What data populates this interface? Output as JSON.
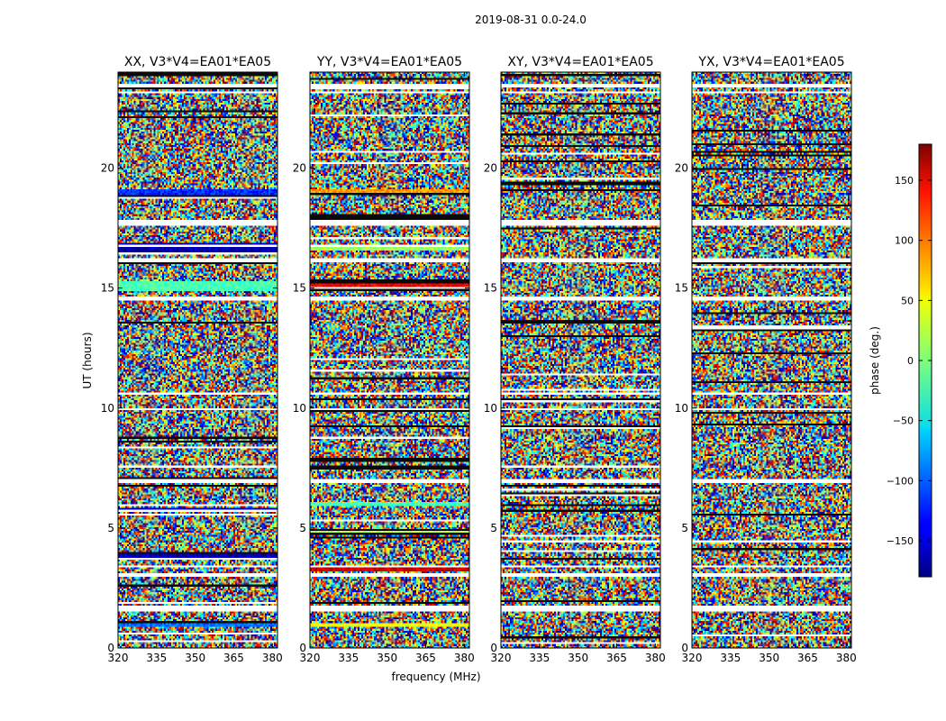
{
  "figure": {
    "suptitle": "2019-08-31 0.0-24.0",
    "xlabel": "frequency (MHz)",
    "ylabel": "UT (hours)",
    "colorbar_label": "phase (deg.)"
  },
  "chart_data": {
    "type": "heatmap",
    "colormap": "jet",
    "x_range": [
      320,
      382
    ],
    "y_range": [
      0,
      24
    ],
    "x_ticks": [
      320,
      335,
      350,
      365,
      380
    ],
    "y_ticks": [
      0,
      5,
      10,
      15,
      20
    ],
    "color_range": [
      -180,
      180
    ],
    "color_ticks": [
      -150,
      -100,
      -50,
      0,
      50,
      100,
      150
    ],
    "panels": [
      {
        "title": "XX, V3*V4=EA01*EA05",
        "coherent_bands": [
          {
            "y0": 0.85,
            "y1": 1.05,
            "phase": -95
          },
          {
            "y0": 3.8,
            "y1": 3.9,
            "phase": -160
          },
          {
            "y0": 5.65,
            "y1": 5.85,
            "phase": -155
          },
          {
            "y0": 14.9,
            "y1": 15.3,
            "phase": -20
          },
          {
            "y0": 16.5,
            "y1": 16.85,
            "phase": -165
          },
          {
            "y0": 18.9,
            "y1": 19.1,
            "phase": -120
          }
        ]
      },
      {
        "title": "YY, V3*V4=EA01*EA05",
        "coherent_bands": [
          {
            "y0": 0.85,
            "y1": 1.05,
            "phase": 40
          },
          {
            "y0": 3.2,
            "y1": 3.35,
            "phase": 150
          },
          {
            "y0": 4.7,
            "y1": 4.9,
            "phase": 20
          },
          {
            "y0": 5.9,
            "y1": 6.05,
            "phase": -20
          },
          {
            "y0": 14.85,
            "y1": 15.25,
            "phase": 140
          },
          {
            "y0": 16.55,
            "y1": 16.8,
            "phase": 10
          },
          {
            "y0": 18.9,
            "y1": 19.1,
            "phase": 80
          }
        ]
      },
      {
        "title": "XY, V3*V4=EA01*EA05",
        "coherent_bands": []
      },
      {
        "title": "YX, V3*V4=EA01*EA05",
        "coherent_bands": []
      }
    ],
    "flagged_gaps_hours": [
      [
        1.55,
        1.75
      ],
      [
        3.0,
        3.15
      ],
      [
        3.35,
        3.45
      ],
      [
        6.9,
        7.0
      ],
      [
        9.9,
        10.0
      ],
      [
        10.55,
        10.65
      ],
      [
        14.45,
        14.6
      ],
      [
        16.1,
        16.2
      ],
      [
        17.6,
        17.8
      ],
      [
        23.1,
        23.2
      ],
      [
        23.4,
        23.5
      ]
    ]
  }
}
